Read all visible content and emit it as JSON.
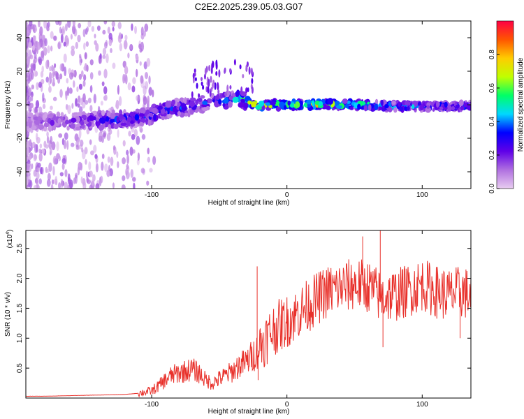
{
  "title": "C2E2.2025.239.05.03.G07",
  "colors": {
    "snr_line": "#e8302a",
    "axis": "#000000",
    "background": "#ffffff"
  },
  "chart_data": [
    {
      "type": "heatmap",
      "name": "spectrogram",
      "xlabel": "Height of straight line (km)",
      "ylabel": "Frequency (Hz)",
      "xlim": [
        -193,
        136
      ],
      "ylim": [
        -50,
        50
      ],
      "x_ticks": [
        -100,
        0,
        100
      ],
      "x_tick_labels": [
        "-100",
        "0",
        "100"
      ],
      "y_ticks": [
        -40,
        -20,
        0,
        20,
        40
      ],
      "y_tick_labels": [
        "-40",
        "-20",
        "0",
        "20",
        "40"
      ],
      "ridge_x": [
        -193,
        -160,
        -130,
        -110,
        -100,
        -90,
        -70,
        -55,
        -45,
        -35,
        -25,
        -10,
        0,
        20,
        40,
        60,
        80,
        100,
        120,
        136
      ],
      "ridge_freq": [
        -10,
        -10,
        -9,
        -8,
        -6,
        -3,
        -1,
        2,
        2,
        4,
        0,
        0,
        0,
        0,
        0,
        0,
        -1,
        -1,
        -1,
        -1
      ],
      "ridge_amplitude": [
        0.15,
        0.25,
        0.35,
        0.35,
        0.35,
        0.4,
        0.35,
        0.4,
        0.45,
        0.5,
        0.9,
        0.8,
        0.7,
        0.9,
        0.7,
        0.6,
        0.5,
        0.45,
        0.4,
        0.35
      ],
      "colorbar": {
        "label": "Normalized spectral amplitude",
        "range": [
          0,
          1
        ],
        "ticks": [
          0.0,
          0.2,
          0.4,
          0.6,
          0.8
        ],
        "tick_labels": [
          "0.0",
          "0.2",
          "0.4",
          "0.6",
          "0.8"
        ],
        "stops": [
          "#e8ccf0",
          "#b070e0",
          "#6000e8",
          "#0000ff",
          "#00d8ff",
          "#00ff66",
          "#c0ff00",
          "#ffcc00",
          "#ff5500",
          "#ff0044"
        ]
      }
    },
    {
      "type": "line",
      "name": "snr",
      "xlabel": "Height of straight line (km)",
      "ylabel": "SNR (10 * v/v)",
      "y_scale_note": "(x10",
      "y_scale_exp": "4",
      "y_scale_close": ")",
      "xlim": [
        -193,
        136
      ],
      "ylim": [
        0,
        2.8
      ],
      "x_ticks": [
        -100,
        0,
        100
      ],
      "x_tick_labels": [
        "-100",
        "0",
        "100"
      ],
      "y_ticks": [
        0.5,
        1.0,
        1.5,
        2.0,
        2.5
      ],
      "y_tick_labels": [
        "0.5",
        "1.0",
        "1.5",
        "2.0",
        "2.5"
      ],
      "series": [
        {
          "name": "SNR",
          "x": [
            -193,
            -180,
            -160,
            -140,
            -120,
            -110,
            -100,
            -95,
            -90,
            -85,
            -80,
            -75,
            -70,
            -65,
            -60,
            -55,
            -50,
            -45,
            -40,
            -35,
            -30,
            -25,
            -21,
            -20,
            -15,
            -10,
            -5,
            0,
            10,
            20,
            30,
            40,
            50,
            60,
            70,
            80,
            90,
            100,
            110,
            120,
            130,
            136
          ],
          "y": [
            0.03,
            0.03,
            0.04,
            0.05,
            0.06,
            0.08,
            0.12,
            0.2,
            0.3,
            0.38,
            0.42,
            0.45,
            0.48,
            0.42,
            0.3,
            0.25,
            0.32,
            0.38,
            0.45,
            0.55,
            0.6,
            0.72,
            0.8,
            0.9,
            1.0,
            1.15,
            1.22,
            1.28,
            1.45,
            1.62,
            1.78,
            1.85,
            1.9,
            1.87,
            1.68,
            1.72,
            1.8,
            1.9,
            1.78,
            1.72,
            1.78,
            1.7
          ]
        }
      ],
      "spikes": [
        {
          "x": -22,
          "y": 2.2
        },
        {
          "x": -21.3,
          "y": 0.3
        },
        {
          "x": 56,
          "y": 2.7
        },
        {
          "x": 69,
          "y": 2.8
        },
        {
          "x": 71,
          "y": 0.85
        },
        {
          "x": 128,
          "y": 1.0
        }
      ]
    }
  ]
}
